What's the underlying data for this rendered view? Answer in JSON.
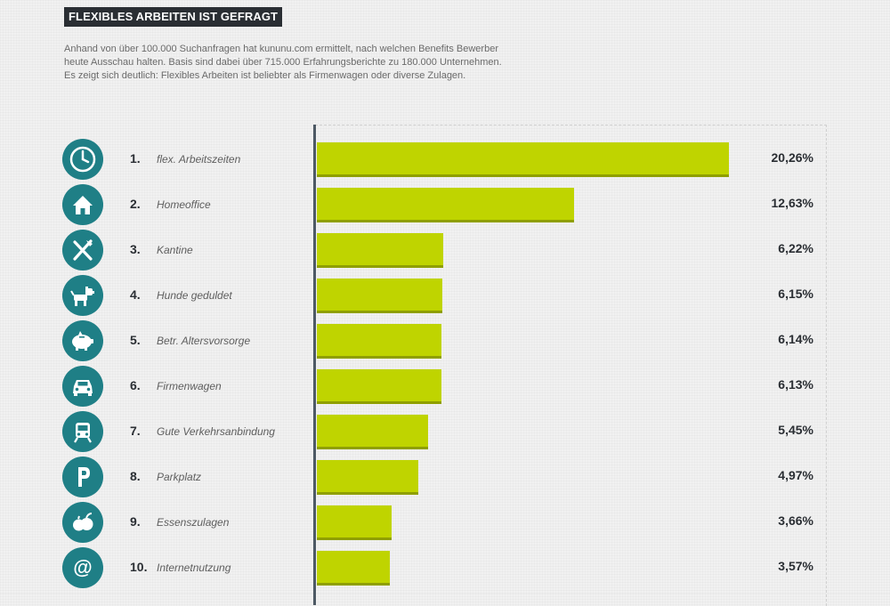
{
  "header": {
    "title": "FLEXIBLES ARBEITEN IST GEFRAGT",
    "intro_lines": [
      "Anhand von über 100.000 Suchanfragen hat kununu.com ermittelt, nach welchen Benefits Bewerber",
      "heute Ausschau halten. Basis sind dabei über 715.000 Erfahrungsberichte zu 180.000 Unternehmen.",
      "Es zeigt sich deutlich: Flexibles Arbeiten ist beliebter als Firmenwagen oder diverse Zulagen."
    ]
  },
  "colors": {
    "bar": "#bfd400",
    "bar_shadow": "#8f9f00",
    "icon_bg": "#1f7f86",
    "title_bg": "#2a2e33"
  },
  "chart_data": {
    "type": "bar",
    "orientation": "horizontal",
    "title": "FLEXIBLES ARBEITEN IST GEFRAGT",
    "categories": [
      "flex. Arbeitszeiten",
      "Homeoffice",
      "Kantine",
      "Hunde geduldet",
      "Betr. Altersvorsorge",
      "Firmenwagen",
      "Gute Verkehrsanbindung",
      "Parkplatz",
      "Essenszulagen",
      "Internetnutzung"
    ],
    "ranks": [
      "1.",
      "2.",
      "3.",
      "4.",
      "5.",
      "6.",
      "7.",
      "8.",
      "9.",
      "10."
    ],
    "values": [
      20.26,
      12.63,
      6.22,
      6.15,
      6.14,
      6.13,
      5.45,
      4.97,
      3.66,
      3.57
    ],
    "value_labels": [
      "20,26%",
      "12,63%",
      "6,22%",
      "6,15%",
      "6,14%",
      "6,13%",
      "5,45%",
      "4,97%",
      "3,66%",
      "3,57%"
    ],
    "icons": [
      "clock-icon",
      "house-icon",
      "cutlery-icon",
      "dog-icon",
      "piggy-bank-icon",
      "car-icon",
      "train-icon",
      "parking-icon",
      "fruit-icon",
      "at-sign-icon"
    ],
    "xlim": [
      0,
      21
    ],
    "xlabel": "",
    "ylabel": "",
    "grid": false,
    "legend": "none"
  }
}
